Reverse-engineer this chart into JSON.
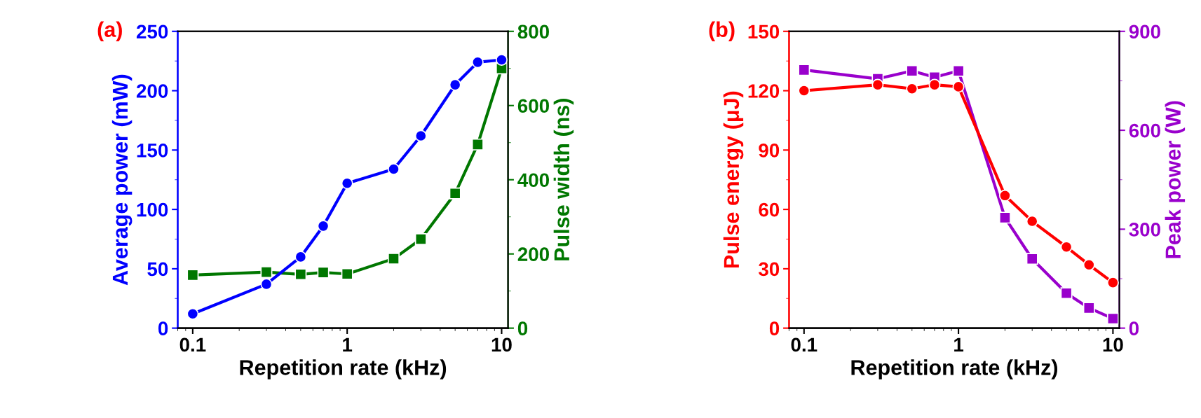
{
  "chart_data": [
    {
      "type": "line",
      "annotations": [
        "(a)"
      ],
      "xlabel": "Repetition rate (kHz)",
      "ylabel": "Average power (mW)",
      "y2label": "Pulse width (ns)",
      "log": "x",
      "xlim": [
        0.08,
        11
      ],
      "xticks": [
        0.1,
        1,
        10
      ],
      "ylim": [
        0,
        250
      ],
      "yticks": [
        0,
        50,
        100,
        150,
        200,
        250
      ],
      "y2lim": [
        0,
        800
      ],
      "y2ticks": [
        0,
        200,
        400,
        600,
        800
      ],
      "x": [
        0.1,
        0.3,
        0.5,
        0.7,
        1,
        2,
        3,
        5,
        7,
        10
      ],
      "grid": false,
      "legend": false,
      "series": [
        {
          "color": "#0000ff",
          "marker": "circle",
          "values": [
            12,
            37,
            60,
            86,
            122,
            134,
            162,
            205,
            224,
            226
          ]
        },
        {
          "color": "#007700",
          "marker": "square",
          "axis": "y2",
          "values": [
            143,
            151,
            145,
            150,
            146,
            187,
            240,
            363,
            495,
            700
          ]
        }
      ]
    },
    {
      "type": "line",
      "annotations": [
        "(b)"
      ],
      "xlabel": "Repetition rate (kHz)",
      "ylabel": "Pulse energy (μJ)",
      "y2label": "Peak power (W)",
      "log": "x",
      "xlim": [
        0.08,
        11
      ],
      "xticks": [
        0.1,
        1,
        10
      ],
      "ylim": [
        0,
        150
      ],
      "yticks": [
        0,
        30,
        60,
        90,
        120,
        150
      ],
      "y2lim": [
        0,
        900
      ],
      "y2ticks": [
        0,
        300,
        600,
        900
      ],
      "x": [
        0.1,
        0.3,
        0.5,
        0.7,
        1,
        2,
        3,
        5,
        7,
        10
      ],
      "grid": false,
      "legend": false,
      "series": [
        {
          "color": "#ff0000",
          "marker": "circle",
          "values": [
            120,
            123,
            121,
            123,
            122,
            67,
            54,
            41,
            32,
            23
          ]
        },
        {
          "color": "#9900cc",
          "marker": "square",
          "axis": "y2",
          "values": [
            783,
            756,
            780,
            761,
            780,
            335,
            210,
            106,
            61,
            29
          ]
        }
      ]
    }
  ]
}
